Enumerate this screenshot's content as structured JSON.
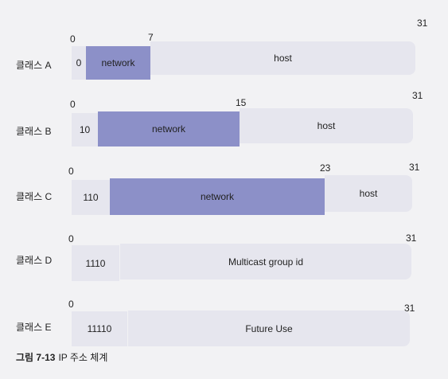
{
  "classes": [
    {
      "label": "클래스 A",
      "start_bit": "0",
      "net_end_bit": "7",
      "last_bit": "31",
      "prefix": "0",
      "network": "network",
      "rest": "host"
    },
    {
      "label": "클래스 B",
      "start_bit": "0",
      "net_end_bit": "15",
      "last_bit": "31",
      "prefix": "10",
      "network": "network",
      "rest": "host"
    },
    {
      "label": "클래스 C",
      "start_bit": "0",
      "net_end_bit": "23",
      "last_bit": "31",
      "prefix": "110",
      "network": "network",
      "rest": "host"
    },
    {
      "label": "클래스 D",
      "start_bit": "0",
      "last_bit": "31",
      "prefix": "1110",
      "rest": "Multicast group id"
    },
    {
      "label": "클래스 E",
      "start_bit": "0",
      "last_bit": "31",
      "prefix": "11110",
      "rest": "Future Use"
    }
  ],
  "caption": {
    "number": "그림 7-13",
    "title": "IP 주소 체계"
  },
  "colors": {
    "network": "#8c90c8",
    "field": "#e6e6ee",
    "background": "#f2f2f4"
  }
}
